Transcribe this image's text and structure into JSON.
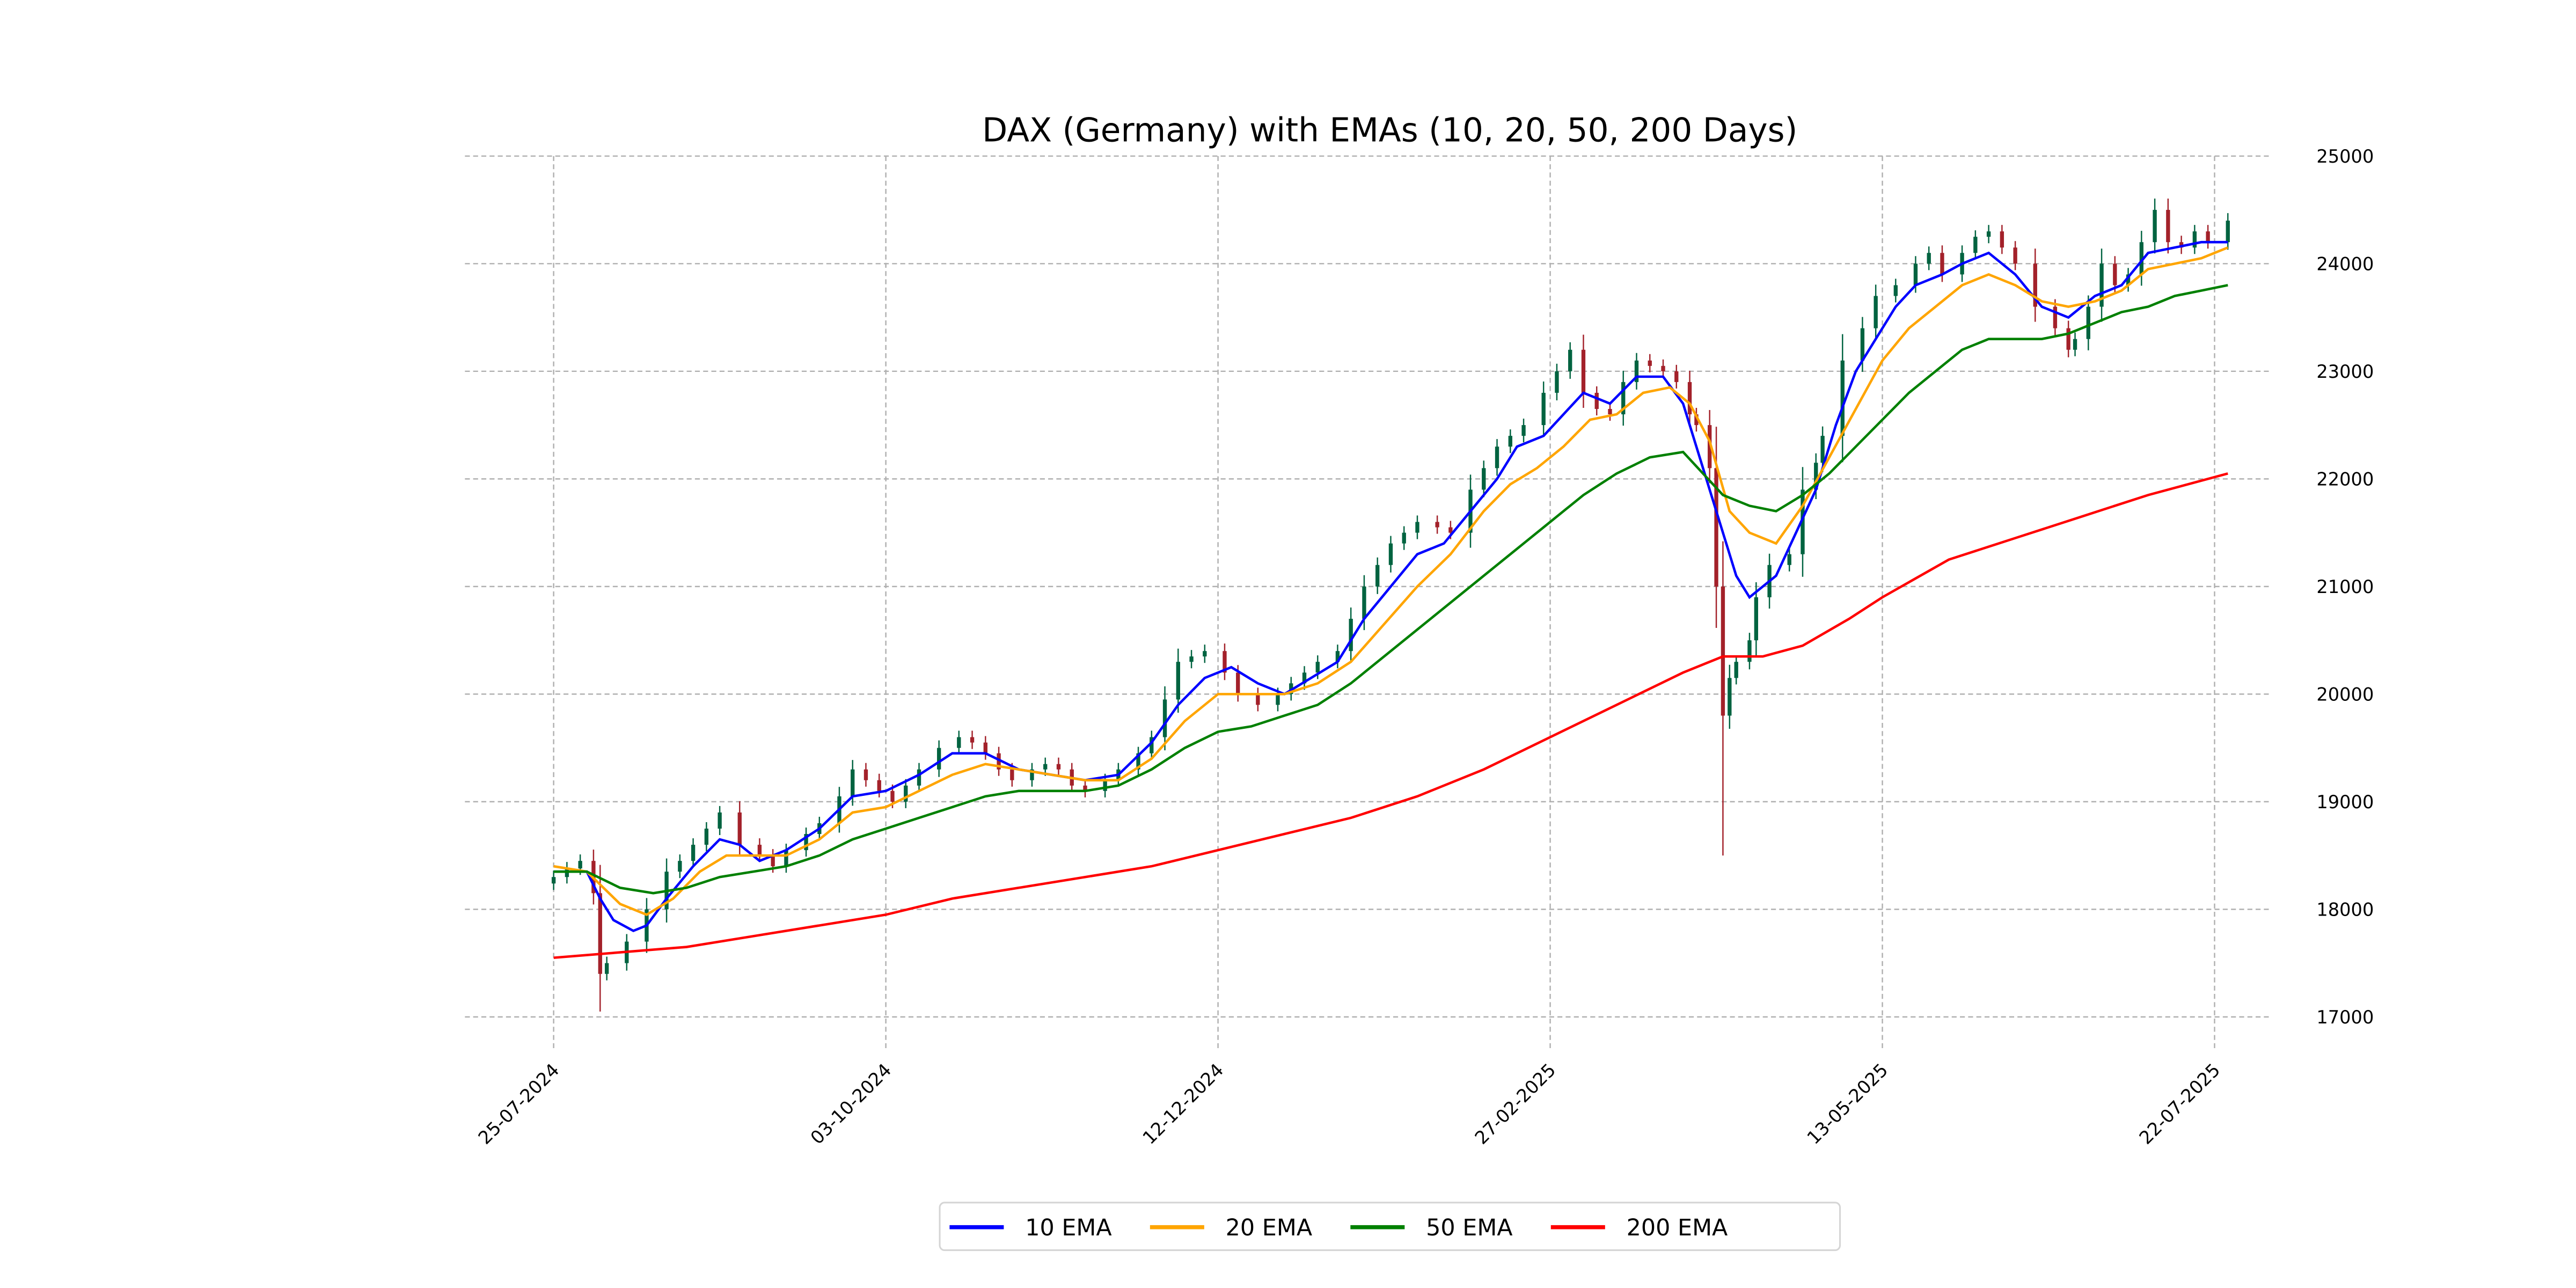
{
  "chart_data": {
    "type": "line",
    "title": "DAX (Germany) with EMAs (10, 20, 50, 200 Days)",
    "xlabel": "",
    "ylabel": "",
    "x_unit": "trading days since 25-07-2024",
    "xlim": [
      -13,
      260
    ],
    "ylim": [
      16650,
      25000
    ],
    "yticks": [
      17000,
      18000,
      19000,
      20000,
      21000,
      22000,
      23000,
      24000,
      25000
    ],
    "ytick_labels": [
      "17000",
      "18000",
      "19000",
      "20000",
      "21000",
      "22000",
      "23000",
      "24000",
      "25000"
    ],
    "xticks": [
      0,
      50,
      100,
      150,
      200,
      250
    ],
    "xtick_labels": [
      "25-07-2024",
      "03-10-2024",
      "12-12-2024",
      "27-02-2025",
      "13-05-2025",
      "22-07-2025"
    ],
    "grid": true,
    "legend_position": "bottom-center",
    "candle_colors": {
      "up": "#006340",
      "down": "#a3212a"
    },
    "candles_close": [
      [
        0,
        18300
      ],
      [
        2,
        18380
      ],
      [
        4,
        18450
      ],
      [
        6,
        18150
      ],
      [
        7,
        17400
      ],
      [
        8,
        17500
      ],
      [
        11,
        17700
      ],
      [
        14,
        18000
      ],
      [
        17,
        18350
      ],
      [
        19,
        18450
      ],
      [
        21,
        18600
      ],
      [
        23,
        18750
      ],
      [
        25,
        18900
      ],
      [
        28,
        18600
      ],
      [
        31,
        18500
      ],
      [
        33,
        18400
      ],
      [
        35,
        18550
      ],
      [
        38,
        18700
      ],
      [
        40,
        18800
      ],
      [
        43,
        19050
      ],
      [
        45,
        19300
      ],
      [
        47,
        19200
      ],
      [
        49,
        19100
      ],
      [
        51,
        19000
      ],
      [
        53,
        19150
      ],
      [
        55,
        19300
      ],
      [
        58,
        19500
      ],
      [
        61,
        19600
      ],
      [
        63,
        19550
      ],
      [
        65,
        19450
      ],
      [
        67,
        19300
      ],
      [
        69,
        19200
      ],
      [
        72,
        19300
      ],
      [
        74,
        19350
      ],
      [
        76,
        19300
      ],
      [
        78,
        19150
      ],
      [
        80,
        19100
      ],
      [
        83,
        19200
      ],
      [
        85,
        19300
      ],
      [
        88,
        19450
      ],
      [
        90,
        19600
      ],
      [
        92,
        19950
      ],
      [
        94,
        20300
      ],
      [
        96,
        20350
      ],
      [
        98,
        20400
      ],
      [
        101,
        20200
      ],
      [
        103,
        20000
      ],
      [
        106,
        19900
      ],
      [
        109,
        20000
      ],
      [
        111,
        20100
      ],
      [
        113,
        20200
      ],
      [
        115,
        20300
      ],
      [
        118,
        20400
      ],
      [
        120,
        20700
      ],
      [
        122,
        21000
      ],
      [
        124,
        21200
      ],
      [
        126,
        21400
      ],
      [
        128,
        21500
      ],
      [
        130,
        21600
      ],
      [
        133,
        21550
      ],
      [
        135,
        21500
      ],
      [
        138,
        21900
      ],
      [
        140,
        22100
      ],
      [
        142,
        22300
      ],
      [
        144,
        22400
      ],
      [
        146,
        22500
      ],
      [
        149,
        22800
      ],
      [
        151,
        23000
      ],
      [
        153,
        23200
      ],
      [
        155,
        22800
      ],
      [
        157,
        22650
      ],
      [
        159,
        22600
      ],
      [
        161,
        22900
      ],
      [
        163,
        23100
      ],
      [
        165,
        23050
      ],
      [
        167,
        23000
      ],
      [
        169,
        22900
      ],
      [
        171,
        22600
      ],
      [
        172,
        22500
      ],
      [
        174,
        22100
      ],
      [
        175,
        21000
      ],
      [
        176,
        19800
      ],
      [
        177,
        20150
      ],
      [
        178,
        20300
      ],
      [
        180,
        20500
      ],
      [
        181,
        20900
      ],
      [
        183,
        21200
      ],
      [
        186,
        21300
      ],
      [
        188,
        21900
      ],
      [
        190,
        22150
      ],
      [
        191,
        22400
      ],
      [
        194,
        23100
      ],
      [
        197,
        23400
      ],
      [
        199,
        23700
      ],
      [
        202,
        23800
      ],
      [
        205,
        24000
      ],
      [
        207,
        24100
      ],
      [
        209,
        23900
      ],
      [
        212,
        24100
      ],
      [
        214,
        24250
      ],
      [
        216,
        24300
      ],
      [
        218,
        24150
      ],
      [
        220,
        24000
      ],
      [
        223,
        23600
      ],
      [
        226,
        23400
      ],
      [
        228,
        23200
      ],
      [
        229,
        23300
      ],
      [
        231,
        23600
      ],
      [
        233,
        24000
      ],
      [
        235,
        23800
      ],
      [
        237,
        23900
      ],
      [
        239,
        24200
      ],
      [
        241,
        24500
      ],
      [
        243,
        24200
      ],
      [
        245,
        24150
      ],
      [
        247,
        24300
      ],
      [
        249,
        24200
      ],
      [
        252,
        24400
      ]
    ],
    "series": [
      {
        "name": "10 EMA",
        "color": "#0000ff",
        "points": [
          [
            0,
            18350
          ],
          [
            5,
            18350
          ],
          [
            7,
            18100
          ],
          [
            9,
            17900
          ],
          [
            12,
            17800
          ],
          [
            14,
            17850
          ],
          [
            17,
            18100
          ],
          [
            21,
            18400
          ],
          [
            25,
            18650
          ],
          [
            28,
            18600
          ],
          [
            31,
            18450
          ],
          [
            35,
            18550
          ],
          [
            40,
            18750
          ],
          [
            45,
            19050
          ],
          [
            50,
            19100
          ],
          [
            55,
            19250
          ],
          [
            60,
            19450
          ],
          [
            65,
            19450
          ],
          [
            70,
            19300
          ],
          [
            75,
            19250
          ],
          [
            80,
            19200
          ],
          [
            85,
            19250
          ],
          [
            90,
            19550
          ],
          [
            94,
            19900
          ],
          [
            98,
            20150
          ],
          [
            102,
            20250
          ],
          [
            106,
            20100
          ],
          [
            110,
            20000
          ],
          [
            114,
            20150
          ],
          [
            118,
            20300
          ],
          [
            122,
            20700
          ],
          [
            126,
            21000
          ],
          [
            130,
            21300
          ],
          [
            134,
            21400
          ],
          [
            138,
            21700
          ],
          [
            142,
            22000
          ],
          [
            145,
            22300
          ],
          [
            149,
            22400
          ],
          [
            152,
            22600
          ],
          [
            155,
            22800
          ],
          [
            159,
            22700
          ],
          [
            163,
            22950
          ],
          [
            167,
            22950
          ],
          [
            170,
            22700
          ],
          [
            172,
            22300
          ],
          [
            175,
            21700
          ],
          [
            178,
            21100
          ],
          [
            180,
            20900
          ],
          [
            184,
            21100
          ],
          [
            187,
            21500
          ],
          [
            190,
            21900
          ],
          [
            193,
            22500
          ],
          [
            196,
            23000
          ],
          [
            199,
            23300
          ],
          [
            202,
            23600
          ],
          [
            205,
            23800
          ],
          [
            209,
            23900
          ],
          [
            212,
            24000
          ],
          [
            216,
            24100
          ],
          [
            220,
            23900
          ],
          [
            224,
            23600
          ],
          [
            228,
            23500
          ],
          [
            232,
            23700
          ],
          [
            236,
            23800
          ],
          [
            240,
            24100
          ],
          [
            244,
            24150
          ],
          [
            248,
            24200
          ],
          [
            252,
            24200
          ]
        ]
      },
      {
        "name": "20 EMA",
        "color": "#ffa500",
        "points": [
          [
            0,
            18400
          ],
          [
            5,
            18350
          ],
          [
            10,
            18050
          ],
          [
            14,
            17950
          ],
          [
            18,
            18100
          ],
          [
            22,
            18350
          ],
          [
            26,
            18500
          ],
          [
            30,
            18500
          ],
          [
            35,
            18500
          ],
          [
            40,
            18650
          ],
          [
            45,
            18900
          ],
          [
            50,
            18950
          ],
          [
            55,
            19100
          ],
          [
            60,
            19250
          ],
          [
            65,
            19350
          ],
          [
            70,
            19300
          ],
          [
            75,
            19250
          ],
          [
            80,
            19200
          ],
          [
            85,
            19200
          ],
          [
            90,
            19400
          ],
          [
            95,
            19750
          ],
          [
            100,
            20000
          ],
          [
            105,
            20000
          ],
          [
            110,
            20000
          ],
          [
            115,
            20100
          ],
          [
            120,
            20300
          ],
          [
            125,
            20650
          ],
          [
            130,
            21000
          ],
          [
            135,
            21300
          ],
          [
            140,
            21700
          ],
          [
            144,
            21950
          ],
          [
            148,
            22100
          ],
          [
            152,
            22300
          ],
          [
            156,
            22550
          ],
          [
            160,
            22600
          ],
          [
            164,
            22800
          ],
          [
            168,
            22850
          ],
          [
            171,
            22700
          ],
          [
            174,
            22350
          ],
          [
            177,
            21700
          ],
          [
            180,
            21500
          ],
          [
            184,
            21400
          ],
          [
            188,
            21750
          ],
          [
            192,
            22200
          ],
          [
            196,
            22650
          ],
          [
            200,
            23100
          ],
          [
            204,
            23400
          ],
          [
            208,
            23600
          ],
          [
            212,
            23800
          ],
          [
            216,
            23900
          ],
          [
            220,
            23800
          ],
          [
            224,
            23650
          ],
          [
            228,
            23600
          ],
          [
            232,
            23650
          ],
          [
            236,
            23750
          ],
          [
            240,
            23950
          ],
          [
            244,
            24000
          ],
          [
            248,
            24050
          ],
          [
            252,
            24150
          ]
        ]
      },
      {
        "name": "50 EMA",
        "color": "#008000",
        "points": [
          [
            0,
            18350
          ],
          [
            5,
            18350
          ],
          [
            10,
            18200
          ],
          [
            15,
            18150
          ],
          [
            20,
            18200
          ],
          [
            25,
            18300
          ],
          [
            30,
            18350
          ],
          [
            35,
            18400
          ],
          [
            40,
            18500
          ],
          [
            45,
            18650
          ],
          [
            50,
            18750
          ],
          [
            55,
            18850
          ],
          [
            60,
            18950
          ],
          [
            65,
            19050
          ],
          [
            70,
            19100
          ],
          [
            75,
            19100
          ],
          [
            80,
            19100
          ],
          [
            85,
            19150
          ],
          [
            90,
            19300
          ],
          [
            95,
            19500
          ],
          [
            100,
            19650
          ],
          [
            105,
            19700
          ],
          [
            110,
            19800
          ],
          [
            115,
            19900
          ],
          [
            120,
            20100
          ],
          [
            125,
            20350
          ],
          [
            130,
            20600
          ],
          [
            135,
            20850
          ],
          [
            140,
            21100
          ],
          [
            145,
            21350
          ],
          [
            150,
            21600
          ],
          [
            155,
            21850
          ],
          [
            160,
            22050
          ],
          [
            165,
            22200
          ],
          [
            170,
            22250
          ],
          [
            173,
            22050
          ],
          [
            176,
            21850
          ],
          [
            180,
            21750
          ],
          [
            184,
            21700
          ],
          [
            188,
            21850
          ],
          [
            192,
            22050
          ],
          [
            196,
            22300
          ],
          [
            200,
            22550
          ],
          [
            204,
            22800
          ],
          [
            208,
            23000
          ],
          [
            212,
            23200
          ],
          [
            216,
            23300
          ],
          [
            220,
            23300
          ],
          [
            224,
            23300
          ],
          [
            228,
            23350
          ],
          [
            232,
            23450
          ],
          [
            236,
            23550
          ],
          [
            240,
            23600
          ],
          [
            244,
            23700
          ],
          [
            248,
            23750
          ],
          [
            252,
            23800
          ]
        ]
      },
      {
        "name": "200 EMA",
        "color": "#ff0000",
        "points": [
          [
            0,
            17550
          ],
          [
            10,
            17600
          ],
          [
            20,
            17650
          ],
          [
            30,
            17750
          ],
          [
            40,
            17850
          ],
          [
            50,
            17950
          ],
          [
            60,
            18100
          ],
          [
            70,
            18200
          ],
          [
            80,
            18300
          ],
          [
            90,
            18400
          ],
          [
            100,
            18550
          ],
          [
            110,
            18700
          ],
          [
            120,
            18850
          ],
          [
            130,
            19050
          ],
          [
            140,
            19300
          ],
          [
            150,
            19600
          ],
          [
            160,
            19900
          ],
          [
            170,
            20200
          ],
          [
            176,
            20350
          ],
          [
            182,
            20350
          ],
          [
            188,
            20450
          ],
          [
            195,
            20700
          ],
          [
            200,
            20900
          ],
          [
            210,
            21250
          ],
          [
            220,
            21450
          ],
          [
            230,
            21650
          ],
          [
            240,
            21850
          ],
          [
            252,
            22050
          ]
        ]
      }
    ]
  }
}
